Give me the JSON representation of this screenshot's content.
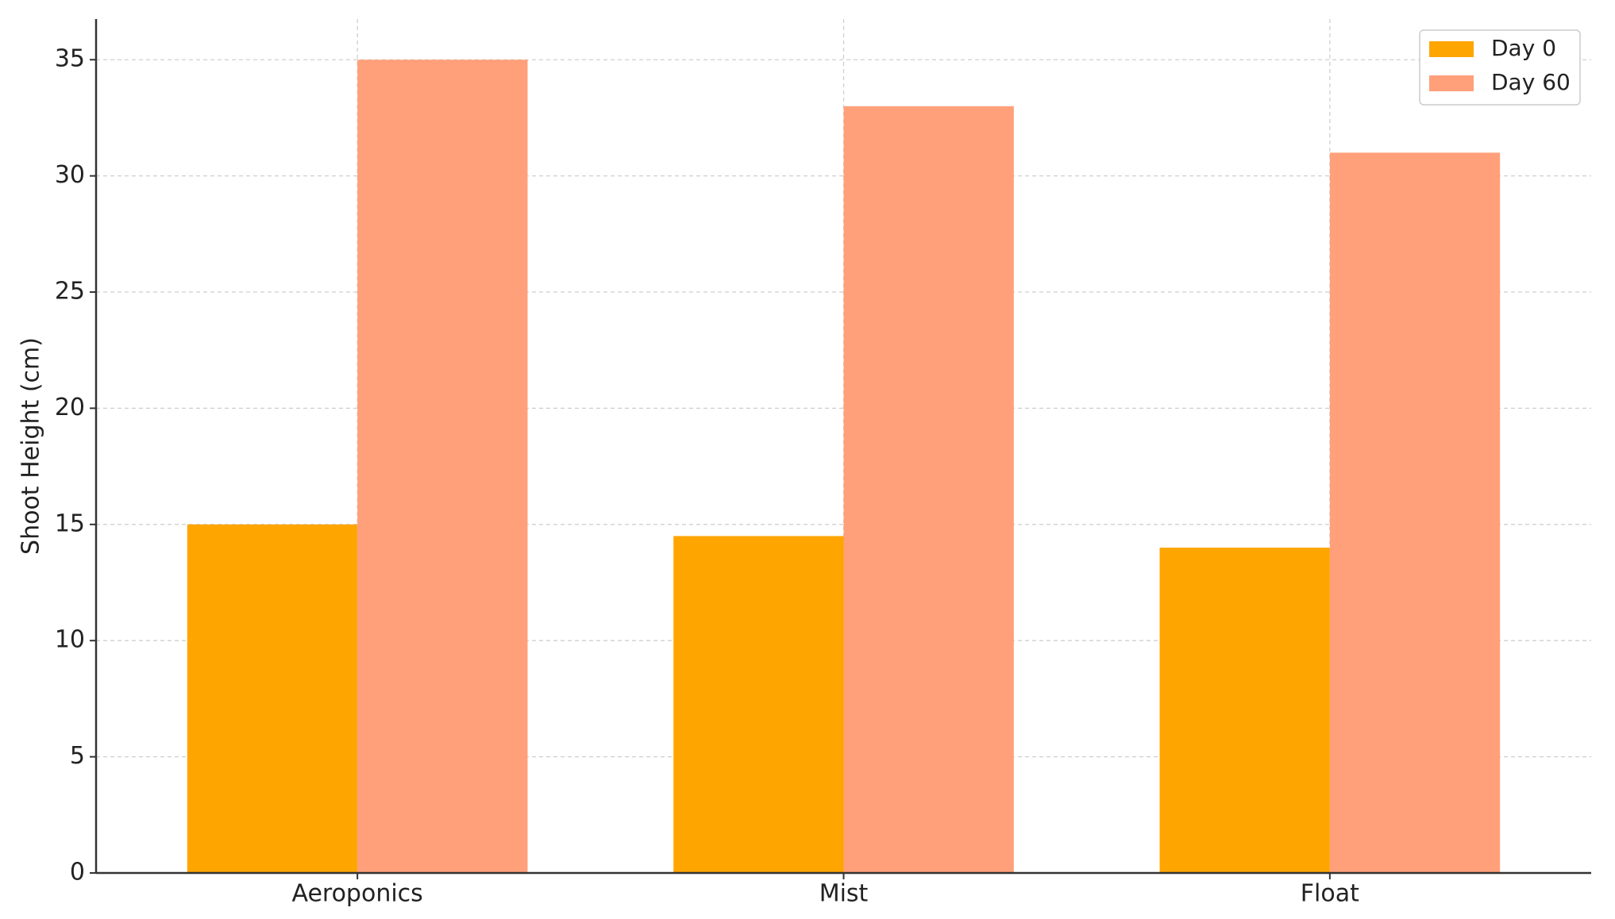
{
  "chart_data": {
    "type": "bar",
    "y_label": "Shoot Height (cm)",
    "categories": [
      "Aeroponics",
      "Mist",
      "Float"
    ],
    "series": [
      {
        "name": "Day 0",
        "color": "#ffa500",
        "values": [
          15,
          14.5,
          14
        ]
      },
      {
        "name": "Day 60",
        "color": "#ffa07a",
        "values": [
          35,
          33,
          31
        ]
      }
    ],
    "ylim": [
      0,
      36.75
    ],
    "yticks": [
      0,
      5,
      10,
      15,
      20,
      25,
      30,
      35
    ],
    "grid": true,
    "legend": "upper right"
  }
}
